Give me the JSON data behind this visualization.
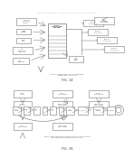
{
  "bg_color": "#ffffff",
  "line_color": "#777777",
  "text_color": "#555555",
  "dark_color": "#444444",
  "header": "Patent Application Publication    May 18, 2006   Sheet 11 of 14    US 2006/0102871 A1",
  "fig34_caption": "CIRCUIT CONNECTIONS FOR ANALYZER MODE\nSELECTION VIA BLINKING",
  "fig38_caption": "EXAMPLE FRAMING STRUCTURE FOR SORTER CONFIGURATION\nFOR LARGE-SCALE CHANNEL COMPETITION",
  "fig34_label": "FIG. 34",
  "fig38_label": "FIG. 38",
  "top_right_boxes": [
    "OUTPUT\nCHANNEL 1",
    "OUTPUT\nCHANNEL 2",
    "OUTPUT\nCHANNEL 3",
    "OUTPUT\nCHANNEL 4"
  ],
  "left_boxes_34": [
    "LASER\nSYSTEM",
    "FLOW\nCELL",
    "DATA\nACQUISITION\nCOMPUTER"
  ],
  "center_label_34": "FLOW\nCYTOMETER\nSORTER",
  "bottom_left_34": "ADC\nCONNECTOR",
  "bottom_right_34": "PTO\nINPUT\nRANGE",
  "top_right_34a": "SORTING\nCONTROLLER\nBOARD",
  "top_right_34b": "CELL\nDEFLECTION\nSYSTEM"
}
